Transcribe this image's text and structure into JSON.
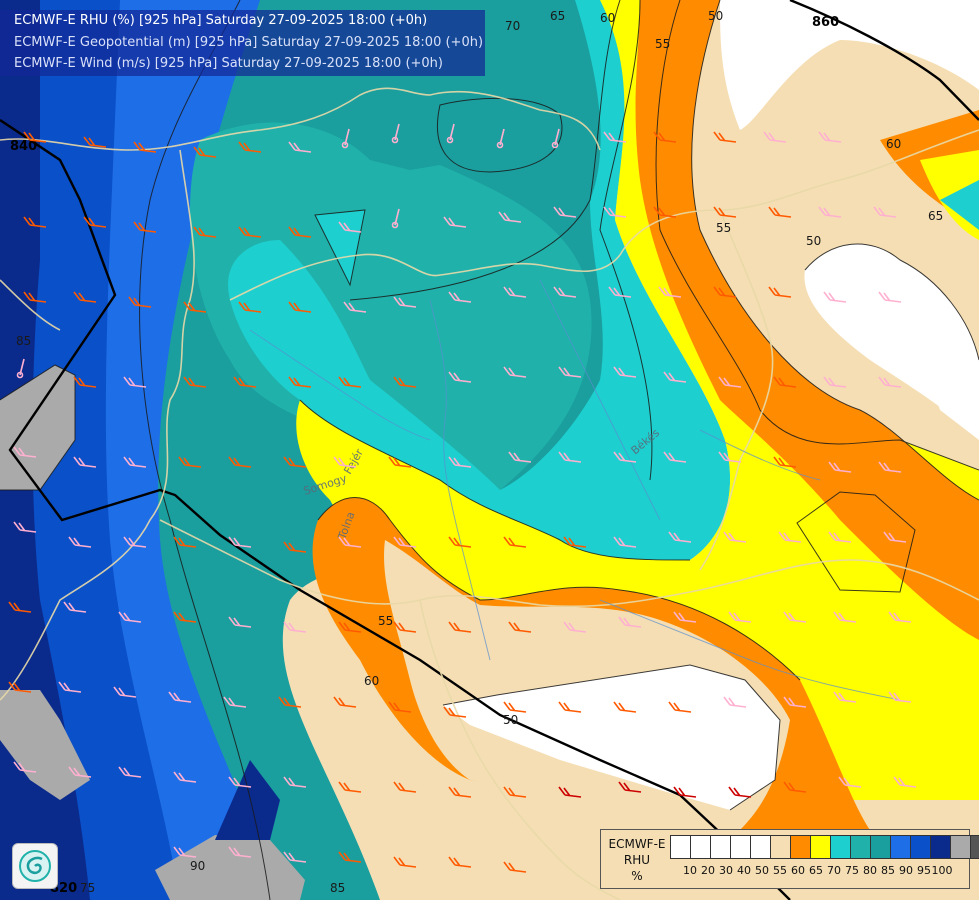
{
  "header": {
    "line1": "ECMWF-E RHU (%) [925 hPa] Saturday 27-09-2025 18:00 (+0h)",
    "line2": "ECMWF-E Geopotential (m) [925 hPa] Saturday 27-09-2025 18:00 (+0h)",
    "line3": "ECMWF-E Wind (m/s) [925 hPa] Saturday 27-09-2025 18:00 (+0h)"
  },
  "legend": {
    "name_line1": "ECMWF-E",
    "name_line2": "RHU",
    "name_line3": "%",
    "swatch_colors": [
      "#ffffff",
      "#ffffff",
      "#ffffff",
      "#ffffff",
      "#ffffff",
      "#f5deb3",
      "#ff8c00",
      "#ffff00",
      "#1dcfcf",
      "#20b2aa",
      "#1a9e9e",
      "#1e6ee8",
      "#0a50c8",
      "#0a2a8c",
      "#aaaaaa",
      "#555555"
    ],
    "ticks": [
      "10",
      "20",
      "30",
      "40",
      "50",
      "55",
      "60",
      "65",
      "70",
      "75",
      "80",
      "85",
      "90",
      "95",
      "100"
    ]
  },
  "contour_labels": [
    {
      "text": "70"
    },
    {
      "text": "65"
    },
    {
      "text": "60"
    },
    {
      "text": "55"
    },
    {
      "text": "50"
    },
    {
      "text": "60"
    },
    {
      "text": "65"
    },
    {
      "text": "55"
    },
    {
      "text": "50"
    },
    {
      "text": "85"
    },
    {
      "text": "55"
    },
    {
      "text": "60"
    },
    {
      "text": "50"
    },
    {
      "text": "90"
    },
    {
      "text": "85"
    },
    {
      "text": "75"
    }
  ],
  "geopotential_labels": [
    {
      "text": "860"
    },
    {
      "text": "840"
    },
    {
      "text": "820"
    }
  ],
  "place_labels": [
    {
      "text": "Somogy"
    },
    {
      "text": "Fejér"
    },
    {
      "text": "Tolna"
    },
    {
      "text": "Békés"
    }
  ],
  "colors": {
    "rhu_50": "#f5deb3",
    "rhu_55": "#ff8c00",
    "rhu_60": "#ffff00",
    "rhu_65": "#1dcfcf",
    "rhu_70": "#20b2aa",
    "rhu_75": "#1a9e9e",
    "rhu_80": "#1e6ee8",
    "rhu_85": "#0a50c8",
    "rhu_90": "#0a2a8c",
    "rhu_95": "#aaaaaa",
    "border": "#e8d9a8",
    "barb_pink": "#ffb0d0",
    "barb_orange": "#ff5a00",
    "barb_red": "#cc0000"
  },
  "logo_icon": "ecmwf-spiral-icon"
}
